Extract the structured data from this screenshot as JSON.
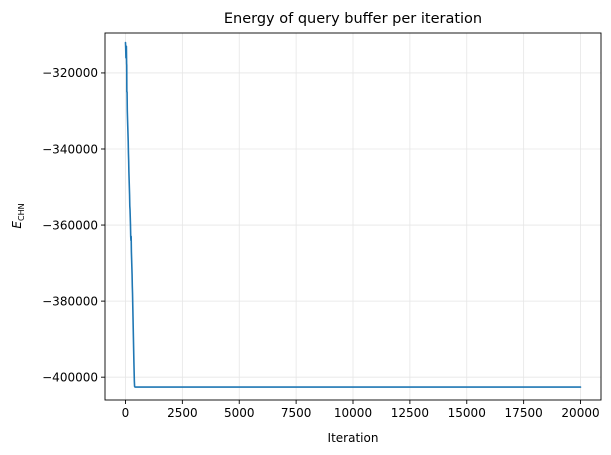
{
  "chart_data": {
    "type": "line",
    "title": "Energy of query buffer per iteration",
    "xlabel": "Iteration",
    "ylabel_main": "E",
    "ylabel_sub": "CHN",
    "xlim": [
      -900,
      20900
    ],
    "ylim": [
      -406000,
      -309500
    ],
    "xticks": [
      0,
      2500,
      5000,
      7500,
      10000,
      12500,
      15000,
      17500,
      20000
    ],
    "xtick_labels": [
      "0",
      "2500",
      "5000",
      "7500",
      "10000",
      "12500",
      "15000",
      "17500",
      "20000"
    ],
    "yticks": [
      -320000,
      -340000,
      -360000,
      -380000,
      -400000
    ],
    "ytick_labels": [
      "−320000",
      "−340000",
      "−360000",
      "−380000",
      "−400000"
    ],
    "grid": true,
    "series": [
      {
        "color": "#1f77b4",
        "x": [
          0,
          10,
          20,
          30,
          40,
          50,
          55,
          60,
          70,
          80,
          90,
          100,
          110,
          120,
          130,
          140,
          150,
          160,
          170,
          180,
          190,
          200,
          210,
          220,
          230,
          240,
          250,
          260,
          270,
          280,
          290,
          300,
          310,
          320,
          330,
          340,
          350,
          360,
          370,
          380,
          390,
          400,
          420,
          450,
          500,
          1000,
          5000,
          10000,
          15000,
          20000
        ],
        "y": [
          -312000,
          -313500,
          -316000,
          -316000,
          -313000,
          -317500,
          -318000,
          -325000,
          -325000,
          -330000,
          -332000,
          -334000,
          -336000,
          -338000,
          -341000,
          -343000,
          -346000,
          -348000,
          -350000,
          -352000,
          -355000,
          -356000,
          -358000,
          -360000,
          -363000,
          -364000,
          -363000,
          -367000,
          -369000,
          -371000,
          -373000,
          -376000,
          -378000,
          -381000,
          -384000,
          -387000,
          -390000,
          -393000,
          -396000,
          -398500,
          -401000,
          -402400,
          -402600,
          -402600,
          -402600,
          -402600,
          -402600,
          -402600,
          -402600,
          -402600
        ]
      }
    ]
  }
}
